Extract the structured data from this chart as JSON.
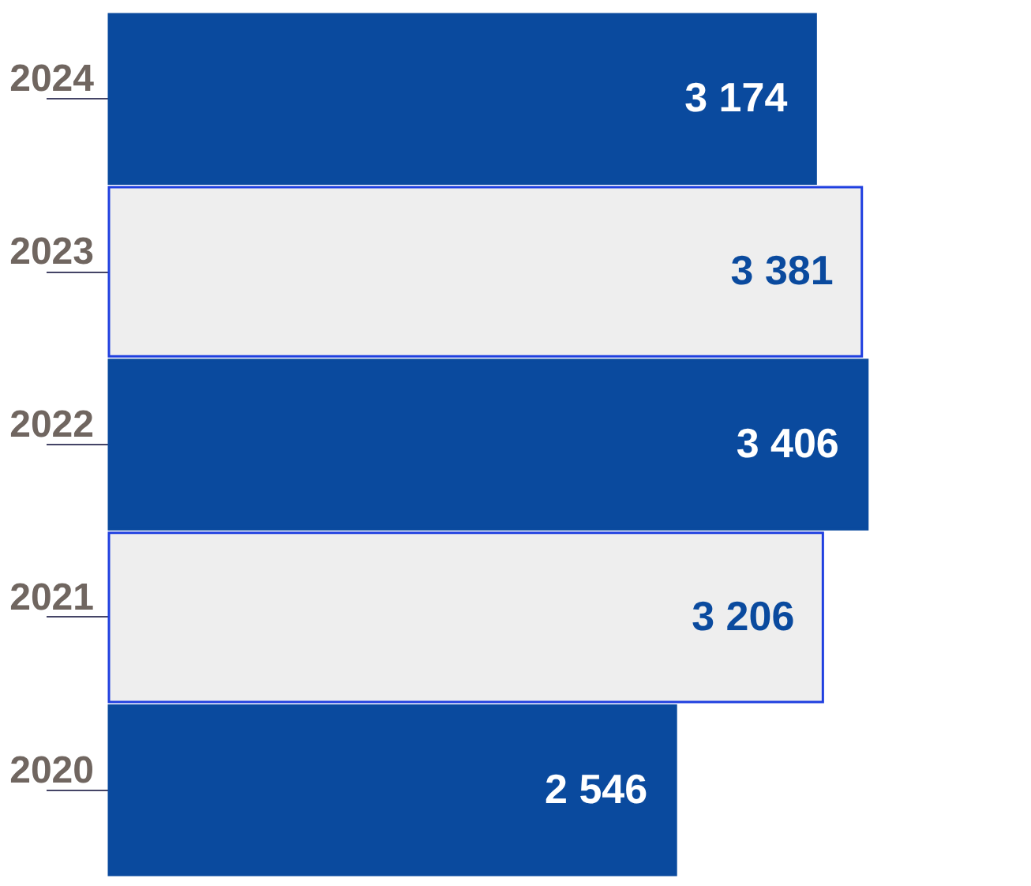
{
  "chart_data": {
    "type": "bar",
    "orientation": "horizontal",
    "categories": [
      "2024",
      "2023",
      "2022",
      "2021",
      "2020"
    ],
    "values": [
      3174,
      3381,
      3406,
      3206,
      2546
    ],
    "value_labels": [
      "3 174",
      "3 381",
      "3 406",
      "3 206",
      "2 546"
    ],
    "colors": [
      "#0a4a9e",
      "#eeeeee",
      "#0a4a9e",
      "#eeeeee",
      "#0a4a9e"
    ],
    "grid": false
  }
}
